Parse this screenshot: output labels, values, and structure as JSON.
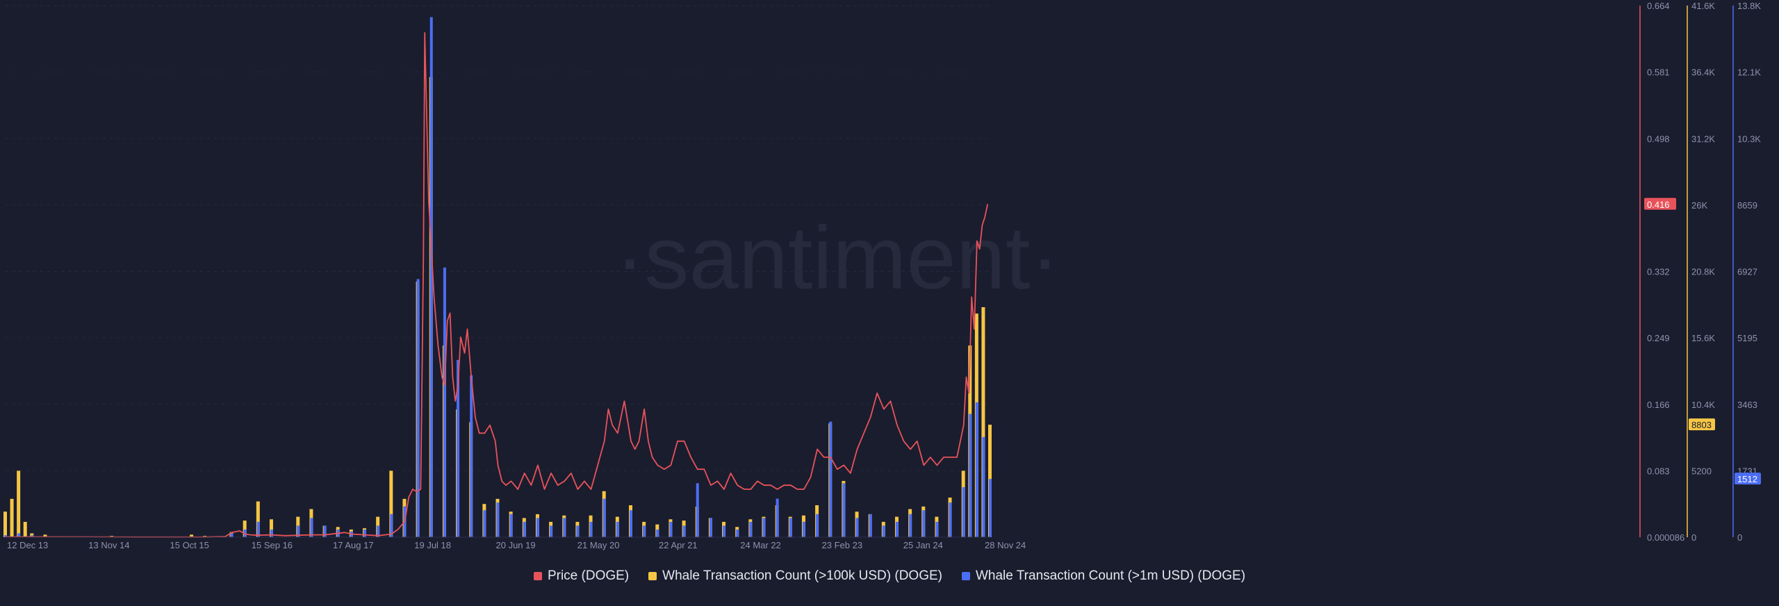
{
  "watermark": "·santiment·",
  "legend": [
    {
      "label": "Price (DOGE)",
      "color": "#e8535b"
    },
    {
      "label": "Whale Transaction Count (>100k USD) (DOGE)",
      "color": "#f6c644"
    },
    {
      "label": "Whale Transaction Count (>1m USD) (DOGE)",
      "color": "#4c6ef5"
    }
  ],
  "chart_data": {
    "type": "bar",
    "x_ticks": [
      "12 Dec 13",
      "13 Nov 14",
      "15 Oct 15",
      "15 Sep 16",
      "17 Aug 17",
      "19 Jul 18",
      "20 Jun 19",
      "21 May 20",
      "22 Apr 21",
      "24 Mar 22",
      "23 Feb 23",
      "25 Jan 24",
      "28 Nov 24"
    ],
    "axes": {
      "price": {
        "color": "#e8535b",
        "ticks": [
          "0.664",
          "0.581",
          "0.498",
          "0.416",
          "0.332",
          "0.249",
          "0.166",
          "0.083",
          "0.000086"
        ],
        "range": [
          8.6e-05,
          0.664
        ],
        "current_label": "0.416"
      },
      "whale_100k": {
        "color": "#f6c644",
        "ticks": [
          "41.6K",
          "36.4K",
          "31.2K",
          "26K",
          "20.8K",
          "15.6K",
          "10.4K",
          "5200",
          "0"
        ],
        "range": [
          0,
          41600
        ],
        "current_label": "8803"
      },
      "whale_1m": {
        "color": "#4c6ef5",
        "ticks": [
          "13.8K",
          "12.1K",
          "10.3K",
          "8659",
          "6927",
          "5195",
          "3463",
          "1731",
          "0"
        ],
        "range": [
          0,
          13800
        ],
        "current_label": "1512"
      }
    },
    "series": [
      {
        "name": "Price (DOGE)",
        "type": "line",
        "color": "#e8535b",
        "points": [
          [
            0,
            0.0005
          ],
          [
            6,
            0.0004
          ],
          [
            10,
            0.0003
          ],
          [
            15,
            0.0003
          ],
          [
            16.5,
            0.0008
          ],
          [
            17,
            0.006
          ],
          [
            17.6,
            0.008
          ],
          [
            18,
            0.004
          ],
          [
            18.4,
            0.003
          ],
          [
            19,
            0.0025
          ],
          [
            20,
            0.003
          ],
          [
            21,
            0.002
          ],
          [
            22,
            0.0025
          ],
          [
            23,
            0.003
          ],
          [
            24,
            0.003
          ],
          [
            25,
            0.005
          ],
          [
            25.5,
            0.006
          ],
          [
            26,
            0.004
          ],
          [
            27,
            0.003
          ],
          [
            28,
            0.002
          ],
          [
            29,
            0.004
          ],
          [
            29.5,
            0.01
          ],
          [
            30,
            0.02
          ],
          [
            30.3,
            0.05
          ],
          [
            30.6,
            0.06
          ],
          [
            30.9,
            0.057
          ],
          [
            31.2,
            0.06
          ],
          [
            31.4,
            0.35
          ],
          [
            31.5,
            0.63
          ],
          [
            31.6,
            0.56
          ],
          [
            31.8,
            0.42
          ],
          [
            32,
            0.36
          ],
          [
            32.2,
            0.3
          ],
          [
            32.5,
            0.24
          ],
          [
            32.8,
            0.2
          ],
          [
            33,
            0.19
          ],
          [
            33.2,
            0.27
          ],
          [
            33.4,
            0.28
          ],
          [
            33.6,
            0.2
          ],
          [
            33.8,
            0.17
          ],
          [
            34,
            0.19
          ],
          [
            34.2,
            0.25
          ],
          [
            34.5,
            0.23
          ],
          [
            34.7,
            0.26
          ],
          [
            35,
            0.2
          ],
          [
            35.3,
            0.15
          ],
          [
            35.6,
            0.13
          ],
          [
            36,
            0.13
          ],
          [
            36.4,
            0.14
          ],
          [
            36.8,
            0.12
          ],
          [
            37,
            0.09
          ],
          [
            37.3,
            0.07
          ],
          [
            37.6,
            0.065
          ],
          [
            38,
            0.07
          ],
          [
            38.5,
            0.06
          ],
          [
            39,
            0.08
          ],
          [
            39.5,
            0.065
          ],
          [
            40,
            0.09
          ],
          [
            40.5,
            0.06
          ],
          [
            41,
            0.08
          ],
          [
            41.5,
            0.065
          ],
          [
            42,
            0.07
          ],
          [
            42.5,
            0.08
          ],
          [
            43,
            0.06
          ],
          [
            43.5,
            0.07
          ],
          [
            44,
            0.06
          ],
          [
            44.5,
            0.09
          ],
          [
            45,
            0.12
          ],
          [
            45.3,
            0.16
          ],
          [
            45.6,
            0.14
          ],
          [
            46,
            0.13
          ],
          [
            46.5,
            0.17
          ],
          [
            46.8,
            0.14
          ],
          [
            47,
            0.12
          ],
          [
            47.3,
            0.11
          ],
          [
            47.6,
            0.12
          ],
          [
            48,
            0.16
          ],
          [
            48.3,
            0.12
          ],
          [
            48.6,
            0.1
          ],
          [
            49,
            0.09
          ],
          [
            49.5,
            0.085
          ],
          [
            50,
            0.09
          ],
          [
            50.5,
            0.12
          ],
          [
            51,
            0.12
          ],
          [
            51.5,
            0.1
          ],
          [
            52,
            0.085
          ],
          [
            52.5,
            0.085
          ],
          [
            53,
            0.065
          ],
          [
            53.5,
            0.07
          ],
          [
            54,
            0.06
          ],
          [
            54.5,
            0.08
          ],
          [
            55,
            0.065
          ],
          [
            55.5,
            0.06
          ],
          [
            56,
            0.06
          ],
          [
            56.5,
            0.07
          ],
          [
            57,
            0.065
          ],
          [
            57.5,
            0.065
          ],
          [
            58,
            0.06
          ],
          [
            58.5,
            0.065
          ],
          [
            59,
            0.065
          ],
          [
            59.5,
            0.06
          ],
          [
            60,
            0.06
          ],
          [
            60.5,
            0.075
          ],
          [
            61,
            0.11
          ],
          [
            61.5,
            0.1
          ],
          [
            62,
            0.1
          ],
          [
            62.5,
            0.085
          ],
          [
            63,
            0.09
          ],
          [
            63.5,
            0.08
          ],
          [
            64,
            0.11
          ],
          [
            64.5,
            0.13
          ],
          [
            65,
            0.15
          ],
          [
            65.5,
            0.18
          ],
          [
            66,
            0.16
          ],
          [
            66.5,
            0.17
          ],
          [
            67,
            0.14
          ],
          [
            67.5,
            0.12
          ],
          [
            68,
            0.11
          ],
          [
            68.5,
            0.12
          ],
          [
            69,
            0.09
          ],
          [
            69.5,
            0.1
          ],
          [
            70,
            0.09
          ],
          [
            70.5,
            0.1
          ],
          [
            71,
            0.1
          ],
          [
            71.5,
            0.1
          ],
          [
            72,
            0.14
          ],
          [
            72.2,
            0.2
          ],
          [
            72.4,
            0.18
          ],
          [
            72.6,
            0.3
          ],
          [
            72.8,
            0.26
          ],
          [
            73,
            0.37
          ],
          [
            73.2,
            0.36
          ],
          [
            73.4,
            0.39
          ],
          [
            73.6,
            0.4
          ],
          [
            73.8,
            0.416
          ]
        ]
      },
      {
        "name": "Whale Transaction Count (>100k USD) (DOGE)",
        "type": "bar",
        "color": "#f6c644",
        "points": [
          [
            0,
            2000
          ],
          [
            0.5,
            3000
          ],
          [
            1,
            5200
          ],
          [
            1.5,
            1200
          ],
          [
            2,
            300
          ],
          [
            3,
            200
          ],
          [
            8,
            100
          ],
          [
            14,
            200
          ],
          [
            15,
            100
          ],
          [
            17,
            400
          ],
          [
            18,
            1300
          ],
          [
            19,
            2800
          ],
          [
            20,
            1400
          ],
          [
            22,
            1600
          ],
          [
            23,
            2200
          ],
          [
            24,
            900
          ],
          [
            25,
            800
          ],
          [
            26,
            600
          ],
          [
            27,
            700
          ],
          [
            28,
            1600
          ],
          [
            29,
            5200
          ],
          [
            30,
            3000
          ],
          [
            31,
            20000
          ],
          [
            32,
            36000
          ],
          [
            33,
            15000
          ],
          [
            34,
            10000
          ],
          [
            35,
            9000
          ],
          [
            36,
            2600
          ],
          [
            37,
            3000
          ],
          [
            38,
            2000
          ],
          [
            39,
            1500
          ],
          [
            40,
            1800
          ],
          [
            41,
            1200
          ],
          [
            42,
            1700
          ],
          [
            43,
            1200
          ],
          [
            44,
            1700
          ],
          [
            45,
            3600
          ],
          [
            46,
            1600
          ],
          [
            47,
            2500
          ],
          [
            48,
            1200
          ],
          [
            49,
            1000
          ],
          [
            50,
            1400
          ],
          [
            51,
            1300
          ],
          [
            52,
            2400
          ],
          [
            53,
            1500
          ],
          [
            54,
            1200
          ],
          [
            55,
            800
          ],
          [
            56,
            1400
          ],
          [
            57,
            1600
          ],
          [
            58,
            2500
          ],
          [
            59,
            1600
          ],
          [
            60,
            1700
          ],
          [
            61,
            2500
          ],
          [
            62,
            8900
          ],
          [
            63,
            4400
          ],
          [
            64,
            2000
          ],
          [
            65,
            1800
          ],
          [
            66,
            1200
          ],
          [
            67,
            1600
          ],
          [
            68,
            2200
          ],
          [
            69,
            2400
          ],
          [
            70,
            1600
          ],
          [
            71,
            3100
          ],
          [
            72,
            5200
          ],
          [
            72.5,
            15000
          ],
          [
            73,
            17500
          ],
          [
            73.5,
            18000
          ],
          [
            74,
            8803
          ]
        ]
      },
      {
        "name": "Whale Transaction Count (>1m USD) (DOGE)",
        "type": "bar",
        "color": "#4c6ef5",
        "points": [
          [
            0,
            50
          ],
          [
            1,
            100
          ],
          [
            2,
            50
          ],
          [
            17,
            100
          ],
          [
            18,
            200
          ],
          [
            19,
            400
          ],
          [
            20,
            200
          ],
          [
            22,
            300
          ],
          [
            23,
            500
          ],
          [
            24,
            300
          ],
          [
            25,
            200
          ],
          [
            26,
            150
          ],
          [
            27,
            200
          ],
          [
            28,
            300
          ],
          [
            29,
            600
          ],
          [
            30,
            800
          ],
          [
            31,
            6700
          ],
          [
            32,
            13500
          ],
          [
            33,
            7000
          ],
          [
            34,
            4600
          ],
          [
            35,
            4200
          ],
          [
            36,
            700
          ],
          [
            37,
            900
          ],
          [
            38,
            600
          ],
          [
            39,
            400
          ],
          [
            40,
            500
          ],
          [
            41,
            300
          ],
          [
            42,
            500
          ],
          [
            43,
            300
          ],
          [
            44,
            400
          ],
          [
            45,
            1000
          ],
          [
            46,
            400
          ],
          [
            47,
            700
          ],
          [
            48,
            300
          ],
          [
            49,
            200
          ],
          [
            50,
            400
          ],
          [
            51,
            300
          ],
          [
            52,
            1400
          ],
          [
            53,
            500
          ],
          [
            54,
            300
          ],
          [
            55,
            200
          ],
          [
            56,
            400
          ],
          [
            57,
            500
          ],
          [
            58,
            1000
          ],
          [
            59,
            500
          ],
          [
            60,
            400
          ],
          [
            61,
            600
          ],
          [
            62,
            3000
          ],
          [
            63,
            1400
          ],
          [
            64,
            500
          ],
          [
            65,
            600
          ],
          [
            66,
            300
          ],
          [
            67,
            400
          ],
          [
            68,
            600
          ],
          [
            69,
            700
          ],
          [
            70,
            400
          ],
          [
            71,
            900
          ],
          [
            72,
            1300
          ],
          [
            72.5,
            3200
          ],
          [
            73,
            3500
          ],
          [
            73.5,
            2600
          ],
          [
            74,
            1512
          ]
        ]
      }
    ],
    "grid": true,
    "legend_position": "bottom-center"
  }
}
